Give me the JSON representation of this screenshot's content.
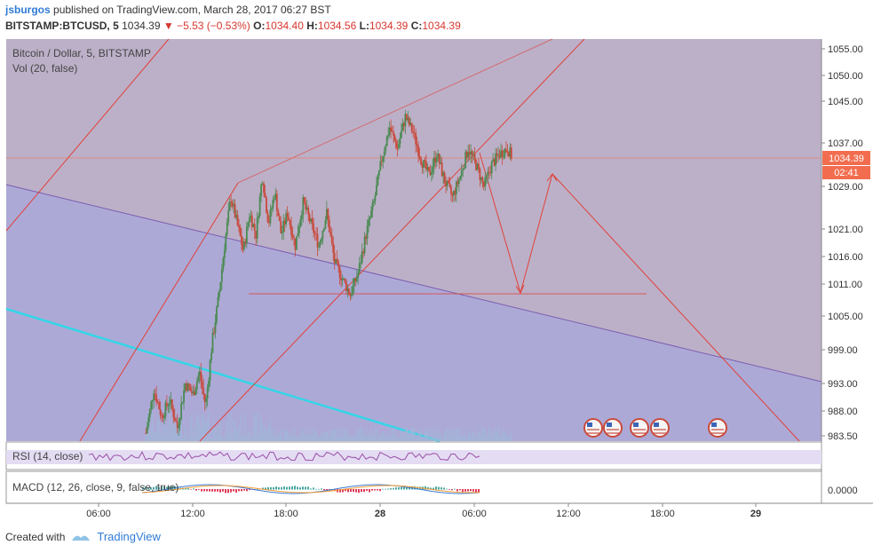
{
  "header": {
    "user": "jsburgos",
    "published_text": "published on TradingView.com, March 28, 2017 06:27 BST",
    "symbol": "BITSTAMP:BTCUSD, 5",
    "last": "1034.39",
    "change": "▼ −5.53 (−0.53%)",
    "o_label": "O:",
    "o_value": "1034.40",
    "h_label": "H:",
    "h_value": "1034.56",
    "l_label": "L:",
    "l_value": "1034.39",
    "c_label": "C:",
    "c_value": "1034.39"
  },
  "chart_data": {
    "type": "candlestick",
    "title": "Bitcoin / Dollar, 5, BITSTAMP",
    "volume_label": "Vol (20, false)",
    "x_ticks": [
      "06:00",
      "12:00",
      "18:00",
      "28",
      "06:00",
      "12:00",
      "18:00",
      "29"
    ],
    "y_ticks": [
      "1055.00",
      "1050.00",
      "1045.00",
      "1037.00",
      "1029.00",
      "1021.00",
      "1016.00",
      "1011.00",
      "1005.00",
      "999.00",
      "993.00",
      "988.00",
      "983.50"
    ],
    "last_price": "1034.39",
    "countdown": "02:41",
    "ylim": [
      983.5,
      1055
    ],
    "price_path": [
      [
        9.0,
        984
      ],
      [
        9.5,
        992
      ],
      [
        10.0,
        987
      ],
      [
        10.5,
        990
      ],
      [
        11.0,
        985
      ],
      [
        11.5,
        993
      ],
      [
        12.0,
        991
      ],
      [
        12.4,
        995
      ],
      [
        12.8,
        989
      ],
      [
        13.2,
        1000
      ],
      [
        13.6,
        1008
      ],
      [
        14.0,
        1018
      ],
      [
        14.4,
        1027
      ],
      [
        14.8,
        1022
      ],
      [
        15.2,
        1017
      ],
      [
        15.6,
        1024
      ],
      [
        16.0,
        1020
      ],
      [
        16.4,
        1031
      ],
      [
        16.8,
        1022
      ],
      [
        17.2,
        1028
      ],
      [
        17.6,
        1020
      ],
      [
        18.0,
        1024
      ],
      [
        18.5,
        1018
      ],
      [
        19.0,
        1026
      ],
      [
        19.5,
        1022
      ],
      [
        20.0,
        1018
      ],
      [
        20.5,
        1024
      ],
      [
        21.0,
        1015
      ],
      [
        21.5,
        1012
      ],
      [
        22.0,
        1009
      ],
      [
        22.5,
        1013
      ],
      [
        23.0,
        1020
      ],
      [
        23.5,
        1026
      ],
      [
        24.0,
        1034
      ],
      [
        24.5,
        1040
      ],
      [
        25.0,
        1036
      ],
      [
        25.5,
        1042
      ],
      [
        26.0,
        1039
      ],
      [
        26.5,
        1034
      ],
      [
        27.0,
        1031
      ],
      [
        27.5,
        1035
      ],
      [
        28.0,
        1030
      ],
      [
        28.5,
        1027
      ],
      [
        29.0,
        1031
      ],
      [
        29.5,
        1036
      ],
      [
        30.0,
        1033
      ],
      [
        30.5,
        1029
      ],
      [
        31.0,
        1033
      ],
      [
        31.5,
        1035
      ],
      [
        32.0,
        1036
      ],
      [
        32.3,
        1034.39
      ]
    ],
    "rsi_label": "RSI (14, close)",
    "macd_label": "MACD (12, 26, close, 9, false, true)",
    "macd_value": "0.0000",
    "colors": {
      "up": "#4a8a52",
      "down": "#c94a3c",
      "drawing": "#e0413a",
      "channel": "#7b5db0",
      "trendline": "#33d6e8",
      "last_price": "#f26d4f",
      "volume": "#9fb6d9",
      "rsi": "#9a4fa8"
    }
  },
  "footer": {
    "created_with": "Created with",
    "brand": "TradingView"
  }
}
